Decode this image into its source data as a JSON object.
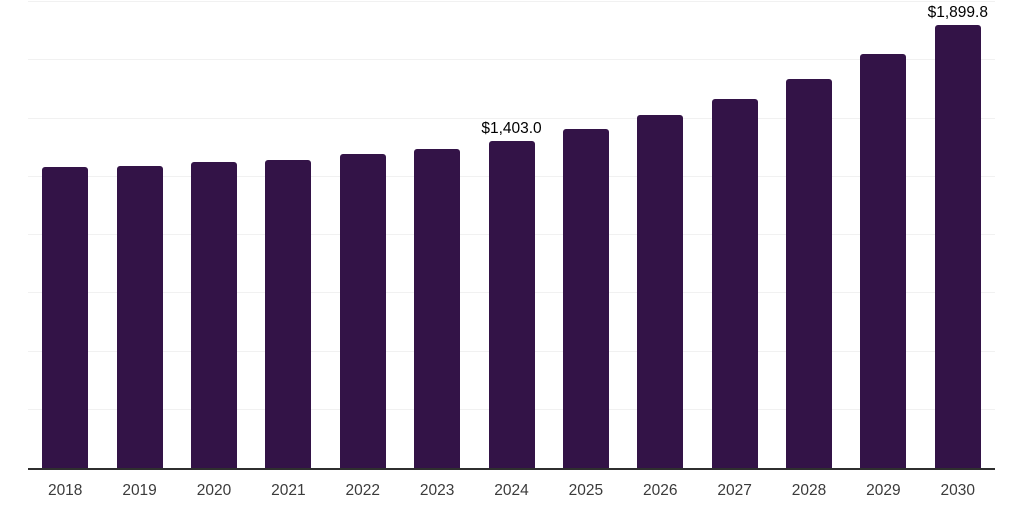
{
  "chart_data": {
    "type": "bar",
    "title": "",
    "xlabel": "",
    "ylabel": "",
    "categories": [
      "2018",
      "2019",
      "2020",
      "2021",
      "2022",
      "2023",
      "2024",
      "2025",
      "2026",
      "2027",
      "2028",
      "2029",
      "2030"
    ],
    "values": [
      1291,
      1296,
      1313,
      1321,
      1347,
      1369,
      1403.0,
      1454,
      1514,
      1583,
      1669,
      1776,
      1899.8
    ],
    "data_labels": {
      "2024": "$1,403.0",
      "2030": "$1,899.8"
    },
    "ylim": [
      0,
      2000
    ],
    "gridline_step": 250,
    "grid": true,
    "legend": false,
    "colors": {
      "bar": "#331347",
      "gridline": "#f1f1f1",
      "axis_line": "#2f2f2f",
      "data_label": "#000000",
      "tick_label": "#3b3b3b",
      "background": "#ffffff"
    }
  }
}
